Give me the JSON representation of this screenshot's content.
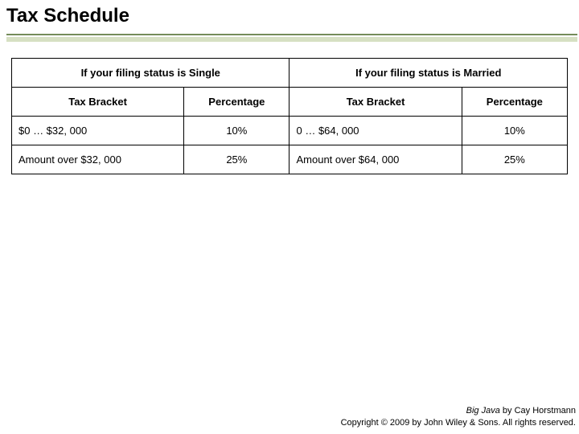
{
  "page": {
    "title": "Tax Schedule",
    "background_color": "#ffffff",
    "text_color": "#000000",
    "title_fontsize": 24,
    "underline_dark_color": "#758c5a",
    "underline_light_color": "#d6e0c3"
  },
  "tax_table": {
    "type": "table",
    "border_color": "#000000",
    "body_fontsize": 13,
    "column_widths_pct": [
      31,
      19,
      31,
      19
    ],
    "status_headers": {
      "single": "If your filing status is Single",
      "married": "If your filing status is Married"
    },
    "sub_headers": {
      "bracket": "Tax Bracket",
      "percentage": "Percentage"
    },
    "rows": [
      {
        "single_bracket": "$0 … $32, 000",
        "single_pct": "10%",
        "married_bracket": "0 … $64, 000",
        "married_pct": "10%"
      },
      {
        "single_bracket": "Amount over $32, 000",
        "single_pct": "25%",
        "married_bracket": "Amount over $64, 000",
        "married_pct": "25%"
      }
    ]
  },
  "footer": {
    "book_title": "Big Java",
    "byline": " by Cay Horstmann",
    "copyright": "Copyright © 2009 by John Wiley & Sons.  All rights reserved.",
    "fontsize": 11
  }
}
